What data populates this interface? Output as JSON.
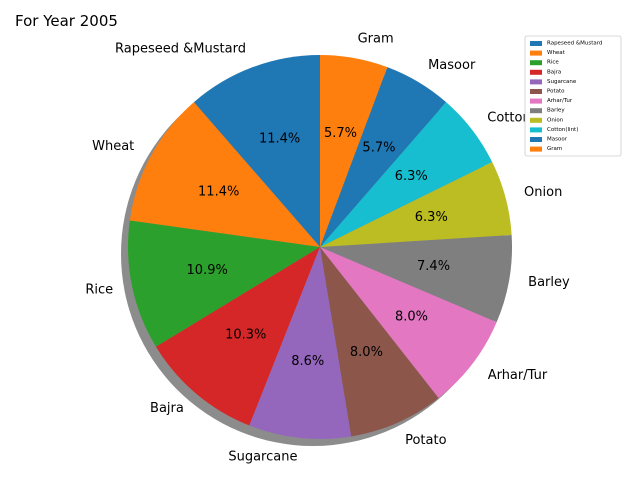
{
  "chart_data": {
    "type": "pie",
    "title": "For Year 2005",
    "categories": [
      "Rapeseed &Mustard",
      "Wheat",
      "Rice",
      "Bajra",
      "Sugarcane",
      "Potato",
      "Arhar/Tur",
      "Barley",
      "Onion",
      "Cotton(lint)",
      "Masoor",
      "Gram"
    ],
    "values": [
      11.4,
      11.4,
      10.9,
      10.3,
      8.6,
      8.0,
      8.0,
      7.4,
      6.3,
      6.3,
      5.7,
      5.7
    ],
    "value_labels": [
      "11.4%",
      "11.4%",
      "10.9%",
      "10.3%",
      "8.6%",
      "8.0%",
      "8.0%",
      "7.4%",
      "6.3%",
      "6.3%",
      "5.7%",
      "5.7%"
    ],
    "colors": [
      "#1f77b4",
      "#ff7f0e",
      "#2ca02c",
      "#d62728",
      "#9467bd",
      "#8c564b",
      "#e377c2",
      "#7f7f7f",
      "#bcbd22",
      "#17becf",
      "#1f77b4",
      "#ff7f0e"
    ],
    "start_angle_deg": 90,
    "direction": "counterclockwise",
    "shadow": true,
    "legend_position": "top-right"
  }
}
